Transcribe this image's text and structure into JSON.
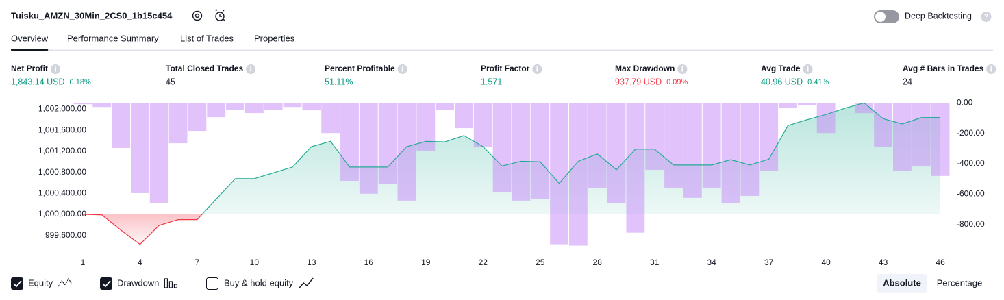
{
  "header": {
    "title": "Tuisku_AMZN_30Min_2CS0_1b15c454",
    "toggle_label": "Deep Backtesting"
  },
  "tabs": [
    "Overview",
    "Performance Summary",
    "List of Trades",
    "Properties"
  ],
  "active_tab": 0,
  "metrics": [
    {
      "label": "Net Profit",
      "value": "1,843.14 USD",
      "percent": "0.18%",
      "color": "#089981"
    },
    {
      "label": "Total Closed Trades",
      "value": "45",
      "color": "#131722"
    },
    {
      "label": "Percent Profitable",
      "value": "51.11%",
      "color": "#089981"
    },
    {
      "label": "Profit Factor",
      "value": "1.571",
      "color": "#089981"
    },
    {
      "label": "Max Drawdown",
      "value": "937.79 USD",
      "percent": "0.09%",
      "color": "#f23645"
    },
    {
      "label": "Avg Trade",
      "value": "40.96 USD",
      "percent": "0.41%",
      "color": "#089981"
    },
    {
      "label": "Avg # Bars in Trades",
      "value": "24",
      "color": "#131722"
    }
  ],
  "buy_hold": {
    "label": "Buy & hold equity",
    "checked": false
  },
  "view_buttons": [
    "Absolute",
    "Percentage"
  ],
  "active_view": 0,
  "chart_data": {
    "type": "combo",
    "x": [
      1,
      2,
      3,
      4,
      5,
      6,
      7,
      8,
      9,
      10,
      11,
      12,
      13,
      14,
      15,
      16,
      17,
      18,
      19,
      20,
      21,
      22,
      23,
      24,
      25,
      26,
      27,
      28,
      29,
      30,
      31,
      32,
      33,
      34,
      35,
      36,
      37,
      38,
      39,
      40,
      41,
      42,
      43,
      44,
      45,
      46
    ],
    "xlim": [
      0.5,
      46.5
    ],
    "xticks": [
      1,
      4,
      7,
      10,
      13,
      16,
      19,
      22,
      25,
      28,
      31,
      34,
      37,
      40,
      43,
      46
    ],
    "ylim": [
      999400,
      1002150
    ],
    "yticks": [
      {
        "value": 999600,
        "label": "999,600.00"
      },
      {
        "value": 1000000,
        "label": "1,000,000.00"
      },
      {
        "value": 1000400,
        "label": "1,000,400.00"
      },
      {
        "value": 1000800,
        "label": "1,000,800.00"
      },
      {
        "value": 1001200,
        "label": "1,001,200.00"
      },
      {
        "value": 1001600,
        "label": "1,001,600.00"
      },
      {
        "value": 1002000,
        "label": "1,002,000.00"
      }
    ],
    "y2lim": [
      -940,
      10
    ],
    "y2ticks": [
      {
        "value": 0,
        "label": "0.00"
      },
      {
        "value": -200,
        "label": "-200.00"
      },
      {
        "value": -400,
        "label": "-400.00"
      },
      {
        "value": -600,
        "label": "-600.00"
      },
      {
        "value": -800,
        "label": "-800.00"
      }
    ],
    "series": [
      {
        "name": "Equity",
        "type": "line",
        "visible": true,
        "color": "#22ab94",
        "negative_color": "#f23645",
        "values": [
          1000000,
          999990,
          999700,
          999430,
          999790,
          999900,
          999900,
          1000290,
          1000680,
          1000680,
          1000790,
          1000900,
          1001290,
          1001390,
          1000900,
          1000900,
          1000900,
          1001290,
          1001390,
          1001380,
          1001500,
          1001290,
          1000920,
          1001010,
          1001000,
          1000590,
          1001010,
          1001150,
          1000850,
          1001240,
          1001240,
          1000940,
          1000940,
          1000940,
          1001040,
          1000940,
          1001050,
          1001690,
          1001800,
          1001900,
          1002020,
          1002120,
          1001820,
          1001720,
          1001840,
          1001843
        ]
      },
      {
        "name": "Drawdown",
        "type": "bar",
        "axis": "y2",
        "visible": true,
        "color": "#c98ff7",
        "values": [
          -9,
          -27,
          -296,
          -593,
          -660,
          -265,
          -184,
          -94,
          -45,
          -67,
          -45,
          -27,
          -49,
          -198,
          -512,
          -597,
          -534,
          -642,
          -314,
          -45,
          -166,
          -292,
          -588,
          -642,
          -633,
          -929,
          -938,
          -561,
          -660,
          -853,
          -440,
          -557,
          -624,
          -557,
          -660,
          -611,
          -449,
          -31,
          -13,
          -198,
          0,
          -67,
          -287,
          -445,
          -418,
          -480
        ]
      }
    ]
  }
}
